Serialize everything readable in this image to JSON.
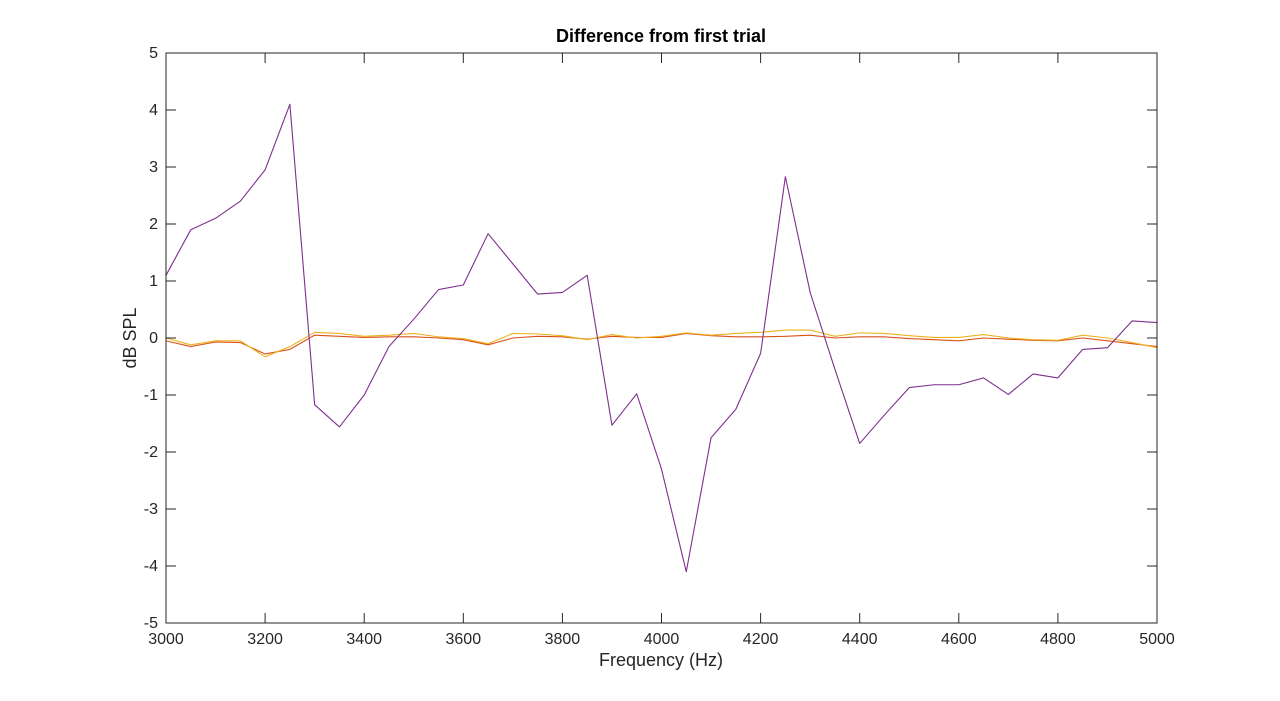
{
  "chart_data": {
    "type": "line",
    "title": "Difference from first trial",
    "xlabel": "Frequency (Hz)",
    "ylabel": "dB SPL",
    "xlim": [
      3000,
      5000
    ],
    "ylim": [
      -5,
      5
    ],
    "xticks": [
      3000,
      3200,
      3400,
      3600,
      3800,
      4000,
      4200,
      4400,
      4600,
      4800,
      5000
    ],
    "yticks": [
      -5,
      -4,
      -3,
      -2,
      -1,
      0,
      1,
      2,
      3,
      4,
      5
    ],
    "grid": false,
    "legend": "none",
    "x": [
      3000,
      3050,
      3100,
      3150,
      3200,
      3250,
      3300,
      3350,
      3400,
      3450,
      3500,
      3550,
      3600,
      3650,
      3700,
      3750,
      3800,
      3850,
      3900,
      3950,
      4000,
      4050,
      4100,
      4150,
      4200,
      4250,
      4300,
      4350,
      4400,
      4450,
      4500,
      4550,
      4600,
      4650,
      4700,
      4750,
      4800,
      4850,
      4900,
      4950,
      5000
    ],
    "series": [
      {
        "color": "#d95319",
        "values": [
          -0.05,
          -0.15,
          -0.07,
          -0.08,
          -0.28,
          -0.2,
          0.05,
          0.03,
          0.01,
          0.02,
          0.02,
          0.0,
          -0.03,
          -0.12,
          0.0,
          0.03,
          0.02,
          -0.02,
          0.03,
          0.01,
          0.01,
          0.08,
          0.04,
          0.02,
          0.02,
          0.03,
          0.05,
          0.0,
          0.02,
          0.02,
          -0.01,
          -0.03,
          -0.05,
          0.0,
          -0.02,
          -0.04,
          -0.05,
          0.0,
          -0.05,
          -0.1,
          -0.15
        ]
      },
      {
        "color": "#edb120",
        "values": [
          0.0,
          -0.12,
          -0.05,
          -0.05,
          -0.33,
          -0.15,
          0.1,
          0.08,
          0.03,
          0.05,
          0.08,
          0.02,
          -0.01,
          -0.1,
          0.08,
          0.07,
          0.04,
          -0.03,
          0.06,
          0.0,
          0.03,
          0.09,
          0.05,
          0.08,
          0.1,
          0.14,
          0.14,
          0.03,
          0.09,
          0.08,
          0.04,
          0.01,
          0.01,
          0.06,
          0.0,
          -0.03,
          -0.04,
          0.05,
          0.0,
          -0.08,
          -0.17
        ]
      },
      {
        "color": "#7e2f8e",
        "values": [
          1.1,
          1.9,
          2.1,
          2.4,
          2.95,
          4.1,
          -1.17,
          -1.56,
          -1.0,
          -0.15,
          0.33,
          0.85,
          0.93,
          1.83,
          1.3,
          0.77,
          0.8,
          1.1,
          -1.53,
          -0.98,
          -2.3,
          -4.1,
          -1.75,
          -1.25,
          -0.27,
          2.83,
          0.8,
          -0.55,
          -1.85,
          -1.35,
          -0.87,
          -0.82,
          -0.82,
          -0.7,
          -0.99,
          -0.63,
          -0.7,
          -0.2,
          -0.17,
          0.3,
          0.27
        ]
      }
    ]
  }
}
